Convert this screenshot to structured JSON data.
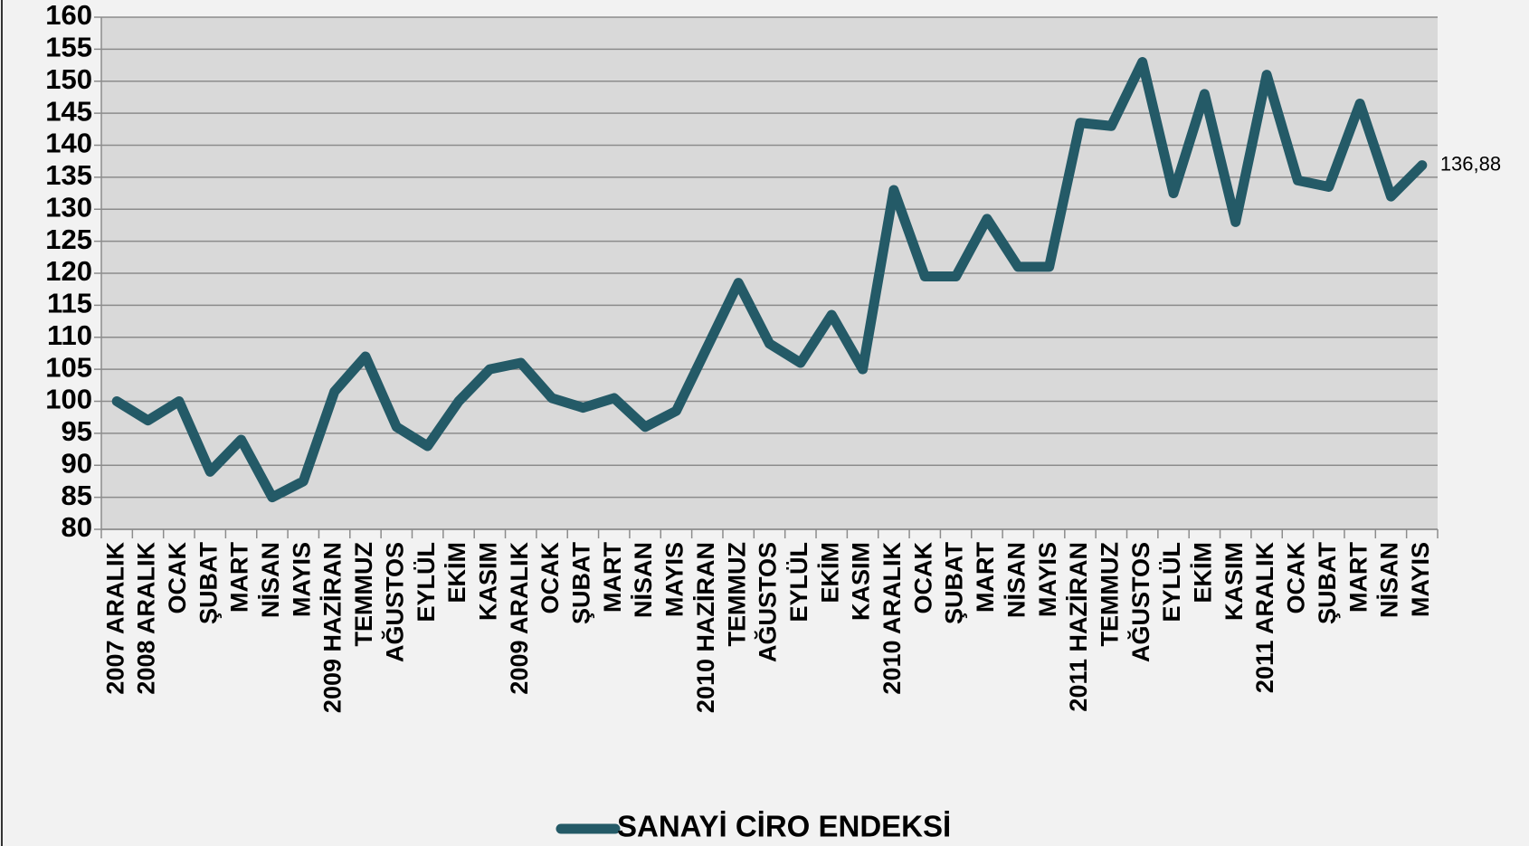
{
  "chart_data": {
    "type": "line",
    "categories": [
      "2007 ARALIK",
      "2008 ARALIK",
      "OCAK",
      "ŞUBAT",
      "MART",
      "NİSAN",
      "MAYIS",
      "2009 HAZİRAN",
      "TEMMUZ",
      "AĞUSTOS",
      "EYLÜL",
      "EKİM",
      "KASIM",
      "2009 ARALIK",
      "OCAK",
      "ŞUBAT",
      "MART",
      "NİSAN",
      "MAYIS",
      "2010 HAZİRAN",
      "TEMMUZ",
      "AĞUSTOS",
      "EYLÜL",
      "EKİM",
      "KASIM",
      "2010 ARALIK",
      "OCAK",
      "ŞUBAT",
      "MART",
      "NİSAN",
      "MAYIS",
      "2011 HAZİRAN",
      "TEMMUZ",
      "AĞUSTOS",
      "EYLÜL",
      "EKİM",
      "KASIM",
      "2011 ARALIK",
      "OCAK",
      "ŞUBAT",
      "MART",
      "NİSAN",
      "MAYIS"
    ],
    "series": [
      {
        "name": "SANAYİ CİRO ENDEKSİ",
        "color": "#245a67",
        "values": [
          100,
          97,
          100,
          89,
          94,
          85,
          87.5,
          101.5,
          107,
          96,
          93,
          100,
          105,
          106,
          100.5,
          99,
          100.5,
          96,
          98.5,
          108.5,
          118.5,
          109,
          106,
          113.5,
          105,
          133,
          119.5,
          119.5,
          128.5,
          121,
          121,
          143.5,
          143,
          153,
          132.5,
          148,
          128,
          151,
          134.5,
          133.5,
          146.5,
          132,
          136.88
        ],
        "value_labels": [
          null,
          null,
          null,
          null,
          null,
          null,
          null,
          null,
          null,
          null,
          null,
          null,
          null,
          null,
          null,
          null,
          null,
          null,
          null,
          null,
          null,
          null,
          null,
          null,
          null,
          null,
          null,
          null,
          null,
          null,
          null,
          null,
          null,
          null,
          null,
          null,
          null,
          null,
          null,
          null,
          null,
          null,
          "136,88"
        ]
      }
    ],
    "ylim": [
      80,
      160
    ],
    "yticks": [
      80,
      85,
      90,
      95,
      100,
      105,
      110,
      115,
      120,
      125,
      130,
      135,
      140,
      145,
      150,
      155,
      160
    ],
    "grid": true,
    "legend": "bottom"
  }
}
